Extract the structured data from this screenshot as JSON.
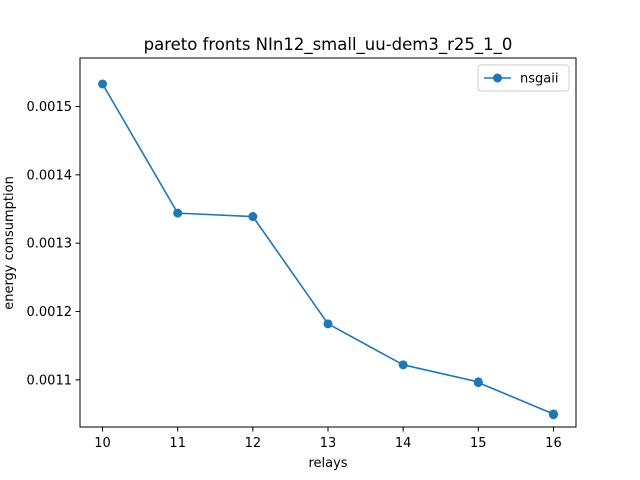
{
  "chart_data": {
    "type": "line",
    "title": "pareto fronts NIn12_small_uu-dem3_r25_1_0",
    "xlabel": "relays",
    "ylabel": "energy consumption",
    "xlim": [
      9.7,
      16.3
    ],
    "ylim": [
      0.001031,
      0.001571
    ],
    "x_ticks": [
      10,
      11,
      12,
      13,
      14,
      15,
      16
    ],
    "x_tick_labels": [
      "10",
      "11",
      "12",
      "13",
      "14",
      "15",
      "16"
    ],
    "y_ticks": [
      0.0011,
      0.0012,
      0.0013,
      0.0014,
      0.0015
    ],
    "y_tick_labels": [
      "0.0011",
      "0.0012",
      "0.0013",
      "0.0014",
      "0.0015"
    ],
    "grid": false,
    "legend_position": "top-right",
    "series": [
      {
        "name": "nsgaii",
        "color": "#1f77b4",
        "marker": "circle",
        "x": [
          10,
          11,
          12,
          13,
          14,
          15,
          15,
          16,
          16
        ],
        "y": [
          0.001533,
          0.001344,
          0.001339,
          0.001182,
          0.001122,
          0.001097,
          0.001096,
          0.00105,
          0.001049
        ]
      }
    ]
  }
}
